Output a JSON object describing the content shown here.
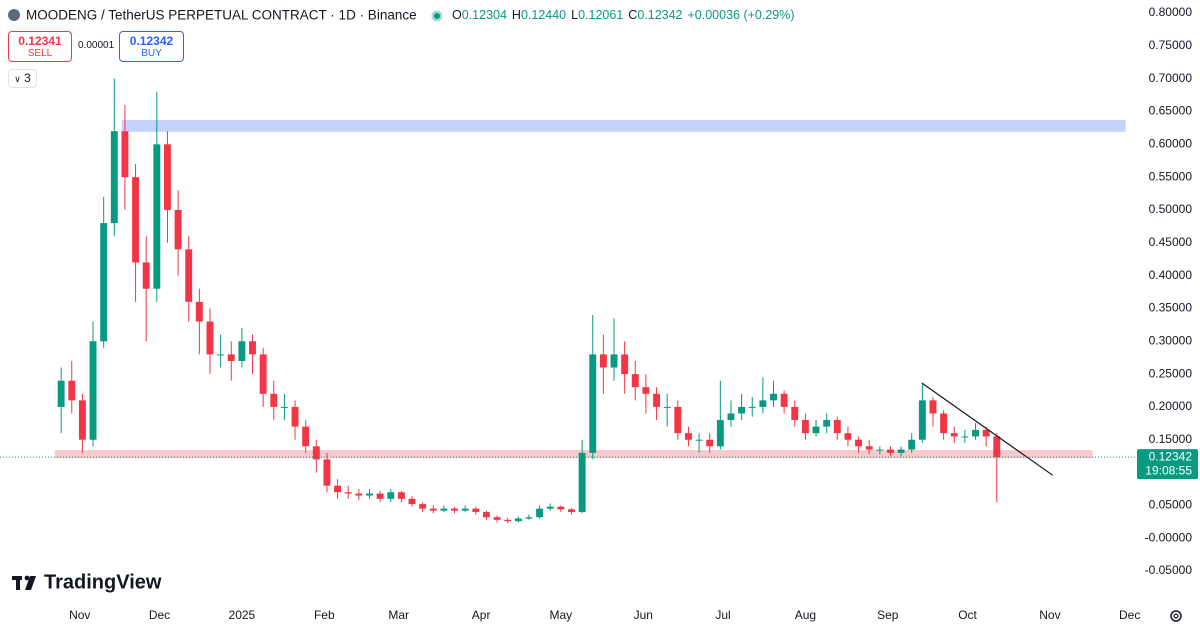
{
  "header": {
    "symbol": "MOODENG / TetherUS PERPETUAL CONTRACT · 1D · Binance",
    "ohlc": [
      {
        "label": "O",
        "value": "0.12304"
      },
      {
        "label": "H",
        "value": "0.12440"
      },
      {
        "label": "L",
        "value": "0.12061"
      },
      {
        "label": "C",
        "value": "0.12342"
      }
    ],
    "change": "+0.00036 (+0.29%)"
  },
  "trade": {
    "sell_price": "0.12341",
    "sell_label": "SELL",
    "spread": "0.00001",
    "buy_price": "0.12342",
    "buy_label": "BUY"
  },
  "indicators_count": "3",
  "logo": "TradingView",
  "chart_data": {
    "type": "candlestick",
    "x": [
      -7,
      -3,
      1,
      5,
      9,
      13,
      17,
      21,
      25,
      29,
      33,
      37,
      41,
      45,
      49,
      53,
      57,
      61,
      65,
      69,
      73,
      77,
      81,
      85,
      89,
      93,
      97,
      101,
      105,
      109,
      113,
      117,
      121,
      125,
      129,
      133,
      137,
      141,
      145,
      149,
      153,
      157,
      161,
      165,
      169,
      173,
      177,
      181,
      185,
      189,
      193,
      197,
      201,
      205,
      209,
      213,
      217,
      221,
      225,
      229,
      233,
      237,
      241,
      245,
      249,
      253,
      257,
      261,
      265,
      269,
      273,
      277,
      281,
      285,
      289,
      293,
      297,
      301,
      305,
      309,
      313,
      317,
      321,
      325,
      329,
      333,
      337,
      341,
      345
    ],
    "open": [
      0.2,
      0.24,
      0.21,
      0.15,
      0.3,
      0.48,
      0.62,
      0.55,
      0.42,
      0.38,
      0.6,
      0.5,
      0.44,
      0.36,
      0.33,
      0.28,
      0.28,
      0.27,
      0.3,
      0.28,
      0.22,
      0.2,
      0.2,
      0.17,
      0.14,
      0.12,
      0.08,
      0.07,
      0.068,
      0.065,
      0.068,
      0.06,
      0.07,
      0.06,
      0.052,
      0.045,
      0.042,
      0.045,
      0.042,
      0.045,
      0.04,
      0.032,
      0.028,
      0.026,
      0.03,
      0.032,
      0.045,
      0.048,
      0.044,
      0.04,
      0.13,
      0.28,
      0.26,
      0.28,
      0.25,
      0.23,
      0.22,
      0.2,
      0.2,
      0.16,
      0.15,
      0.15,
      0.14,
      0.18,
      0.19,
      0.2,
      0.2,
      0.21,
      0.22,
      0.2,
      0.18,
      0.16,
      0.17,
      0.18,
      0.16,
      0.15,
      0.14,
      0.135,
      0.135,
      0.13,
      0.135,
      0.15,
      0.21,
      0.19,
      0.16,
      0.155,
      0.155,
      0.165,
      0.155
    ],
    "high": [
      0.26,
      0.27,
      0.22,
      0.33,
      0.52,
      0.7,
      0.66,
      0.57,
      0.46,
      0.68,
      0.62,
      0.53,
      0.46,
      0.38,
      0.35,
      0.31,
      0.3,
      0.32,
      0.31,
      0.29,
      0.24,
      0.22,
      0.21,
      0.18,
      0.15,
      0.13,
      0.09,
      0.08,
      0.075,
      0.075,
      0.072,
      0.075,
      0.072,
      0.064,
      0.055,
      0.05,
      0.05,
      0.048,
      0.05,
      0.048,
      0.042,
      0.035,
      0.031,
      0.033,
      0.036,
      0.05,
      0.053,
      0.05,
      0.046,
      0.15,
      0.34,
      0.31,
      0.335,
      0.3,
      0.27,
      0.25,
      0.23,
      0.22,
      0.21,
      0.17,
      0.16,
      0.16,
      0.24,
      0.21,
      0.22,
      0.215,
      0.245,
      0.24,
      0.225,
      0.21,
      0.19,
      0.18,
      0.19,
      0.185,
      0.17,
      0.155,
      0.15,
      0.14,
      0.14,
      0.14,
      0.16,
      0.235,
      0.215,
      0.195,
      0.17,
      0.165,
      0.175,
      0.17,
      0.16
    ],
    "low": [
      0.16,
      0.19,
      0.13,
      0.14,
      0.29,
      0.46,
      0.5,
      0.36,
      0.3,
      0.36,
      0.45,
      0.4,
      0.33,
      0.28,
      0.25,
      0.26,
      0.24,
      0.26,
      0.25,
      0.2,
      0.18,
      0.18,
      0.15,
      0.13,
      0.1,
      0.07,
      0.06,
      0.06,
      0.058,
      0.06,
      0.055,
      0.055,
      0.055,
      0.048,
      0.04,
      0.038,
      0.04,
      0.038,
      0.04,
      0.036,
      0.028,
      0.024,
      0.023,
      0.024,
      0.028,
      0.03,
      0.042,
      0.04,
      0.036,
      0.038,
      0.12,
      0.22,
      0.24,
      0.22,
      0.21,
      0.19,
      0.18,
      0.17,
      0.15,
      0.14,
      0.13,
      0.13,
      0.135,
      0.17,
      0.18,
      0.185,
      0.19,
      0.2,
      0.19,
      0.17,
      0.15,
      0.155,
      0.16,
      0.15,
      0.14,
      0.13,
      0.128,
      0.128,
      0.125,
      0.125,
      0.13,
      0.145,
      0.17,
      0.15,
      0.145,
      0.145,
      0.15,
      0.14,
      0.055
    ],
    "close": [
      0.24,
      0.21,
      0.15,
      0.3,
      0.48,
      0.62,
      0.55,
      0.42,
      0.38,
      0.6,
      0.5,
      0.44,
      0.36,
      0.33,
      0.28,
      0.28,
      0.27,
      0.3,
      0.28,
      0.22,
      0.2,
      0.2,
      0.17,
      0.14,
      0.12,
      0.08,
      0.07,
      0.068,
      0.065,
      0.068,
      0.06,
      0.07,
      0.06,
      0.052,
      0.045,
      0.042,
      0.045,
      0.042,
      0.045,
      0.04,
      0.032,
      0.028,
      0.026,
      0.03,
      0.032,
      0.045,
      0.048,
      0.044,
      0.04,
      0.13,
      0.28,
      0.26,
      0.28,
      0.25,
      0.23,
      0.22,
      0.2,
      0.2,
      0.16,
      0.15,
      0.15,
      0.14,
      0.18,
      0.19,
      0.2,
      0.2,
      0.21,
      0.22,
      0.2,
      0.18,
      0.16,
      0.17,
      0.18,
      0.16,
      0.15,
      0.14,
      0.135,
      0.135,
      0.13,
      0.135,
      0.15,
      0.21,
      0.19,
      0.16,
      0.155,
      0.155,
      0.165,
      0.155,
      0.12342
    ],
    "up_color": "#089981",
    "down_color": "#f23645",
    "xlim": [
      -30,
      397
    ],
    "ylim": [
      -0.0865,
      0.8198
    ],
    "xticks": [
      {
        "value": 0,
        "label": "Nov"
      },
      {
        "value": 30,
        "label": "Dec"
      },
      {
        "value": 61,
        "label": "2025"
      },
      {
        "value": 92,
        "label": "Feb"
      },
      {
        "value": 120,
        "label": "Mar"
      },
      {
        "value": 151,
        "label": "Apr"
      },
      {
        "value": 181,
        "label": "May"
      },
      {
        "value": 212,
        "label": "Jun"
      },
      {
        "value": 242,
        "label": "Jul"
      },
      {
        "value": 273,
        "label": "Aug"
      },
      {
        "value": 304,
        "label": "Sep"
      },
      {
        "value": 334,
        "label": "Oct"
      },
      {
        "value": 365,
        "label": "Nov"
      },
      {
        "value": 395,
        "label": "Dec"
      }
    ],
    "yticks": [
      {
        "value": 0.8,
        "label": "0.80000"
      },
      {
        "value": 0.75,
        "label": "0.75000"
      },
      {
        "value": 0.7,
        "label": "0.70000"
      },
      {
        "value": 0.65,
        "label": "0.65000"
      },
      {
        "value": 0.6,
        "label": "0.60000"
      },
      {
        "value": 0.55,
        "label": "0.55000"
      },
      {
        "value": 0.5,
        "label": "0.50000"
      },
      {
        "value": 0.45,
        "label": "0.45000"
      },
      {
        "value": 0.4,
        "label": "0.40000"
      },
      {
        "value": 0.35,
        "label": "0.35000"
      },
      {
        "value": 0.3,
        "label": "0.30000"
      },
      {
        "value": 0.25,
        "label": "0.25000"
      },
      {
        "value": 0.2,
        "label": "0.20000"
      },
      {
        "value": 0.15,
        "label": "0.15000"
      },
      {
        "value": 0.1,
        "label": "0.10000"
      },
      {
        "value": 0.05,
        "label": "0.05000"
      },
      {
        "value": 0,
        "label": "-0.00000"
      },
      {
        "value": -0.05,
        "label": "-0.05000"
      }
    ],
    "grid": false,
    "last_price": 0.12342,
    "countdown": "19:08:55",
    "zones": [
      {
        "from": -9.4,
        "to": 381,
        "low": 0.122,
        "high": 0.1343,
        "color": "#f9c9cc"
      },
      {
        "from": 15.8,
        "to": 393.5,
        "low": 0.619,
        "high": 0.637,
        "color": "#c5d2fc"
      }
    ],
    "trendline": {
      "x": [
        316.8,
        366
      ],
      "y": [
        0.2364,
        0.096
      ],
      "color": "#131722"
    }
  }
}
